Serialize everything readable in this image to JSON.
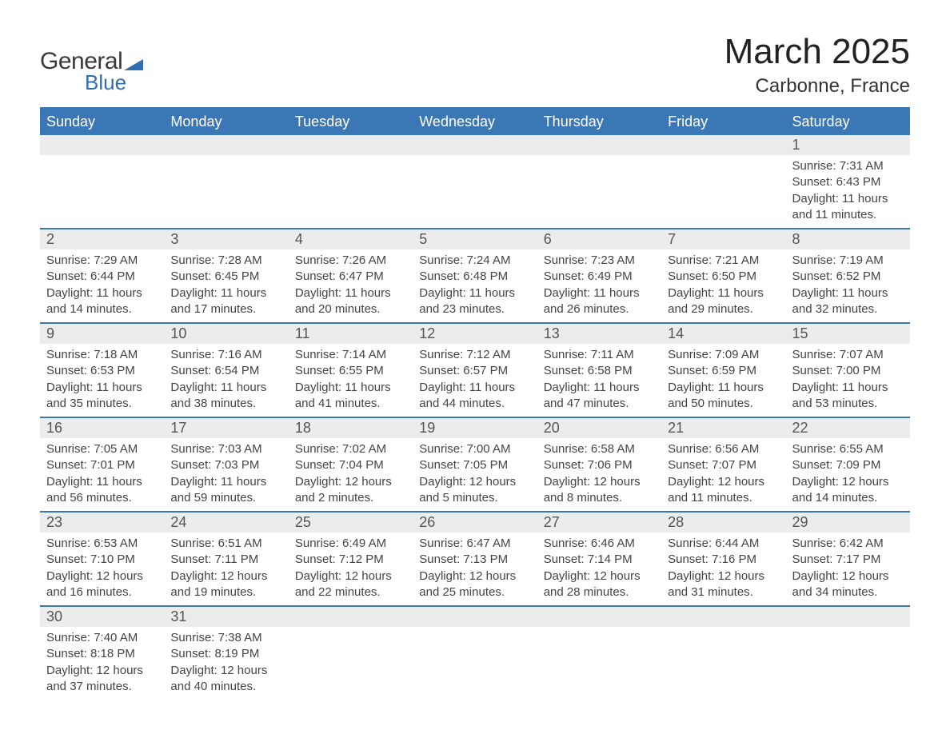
{
  "logo": {
    "text1": "General",
    "text2": "Blue",
    "shape_color": "#2f6fb0"
  },
  "title": "March 2025",
  "location": "Carbonne, France",
  "header_bg": "#3b77b5",
  "header_fg": "#ffffff",
  "daynum_bg": "#ececec",
  "row_border": "#3b77b5",
  "columns": [
    "Sunday",
    "Monday",
    "Tuesday",
    "Wednesday",
    "Thursday",
    "Friday",
    "Saturday"
  ],
  "weeks": [
    [
      null,
      null,
      null,
      null,
      null,
      null,
      {
        "n": "1",
        "sr": "Sunrise: 7:31 AM",
        "ss": "Sunset: 6:43 PM",
        "d1": "Daylight: 11 hours",
        "d2": "and 11 minutes."
      }
    ],
    [
      {
        "n": "2",
        "sr": "Sunrise: 7:29 AM",
        "ss": "Sunset: 6:44 PM",
        "d1": "Daylight: 11 hours",
        "d2": "and 14 minutes."
      },
      {
        "n": "3",
        "sr": "Sunrise: 7:28 AM",
        "ss": "Sunset: 6:45 PM",
        "d1": "Daylight: 11 hours",
        "d2": "and 17 minutes."
      },
      {
        "n": "4",
        "sr": "Sunrise: 7:26 AM",
        "ss": "Sunset: 6:47 PM",
        "d1": "Daylight: 11 hours",
        "d2": "and 20 minutes."
      },
      {
        "n": "5",
        "sr": "Sunrise: 7:24 AM",
        "ss": "Sunset: 6:48 PM",
        "d1": "Daylight: 11 hours",
        "d2": "and 23 minutes."
      },
      {
        "n": "6",
        "sr": "Sunrise: 7:23 AM",
        "ss": "Sunset: 6:49 PM",
        "d1": "Daylight: 11 hours",
        "d2": "and 26 minutes."
      },
      {
        "n": "7",
        "sr": "Sunrise: 7:21 AM",
        "ss": "Sunset: 6:50 PM",
        "d1": "Daylight: 11 hours",
        "d2": "and 29 minutes."
      },
      {
        "n": "8",
        "sr": "Sunrise: 7:19 AM",
        "ss": "Sunset: 6:52 PM",
        "d1": "Daylight: 11 hours",
        "d2": "and 32 minutes."
      }
    ],
    [
      {
        "n": "9",
        "sr": "Sunrise: 7:18 AM",
        "ss": "Sunset: 6:53 PM",
        "d1": "Daylight: 11 hours",
        "d2": "and 35 minutes."
      },
      {
        "n": "10",
        "sr": "Sunrise: 7:16 AM",
        "ss": "Sunset: 6:54 PM",
        "d1": "Daylight: 11 hours",
        "d2": "and 38 minutes."
      },
      {
        "n": "11",
        "sr": "Sunrise: 7:14 AM",
        "ss": "Sunset: 6:55 PM",
        "d1": "Daylight: 11 hours",
        "d2": "and 41 minutes."
      },
      {
        "n": "12",
        "sr": "Sunrise: 7:12 AM",
        "ss": "Sunset: 6:57 PM",
        "d1": "Daylight: 11 hours",
        "d2": "and 44 minutes."
      },
      {
        "n": "13",
        "sr": "Sunrise: 7:11 AM",
        "ss": "Sunset: 6:58 PM",
        "d1": "Daylight: 11 hours",
        "d2": "and 47 minutes."
      },
      {
        "n": "14",
        "sr": "Sunrise: 7:09 AM",
        "ss": "Sunset: 6:59 PM",
        "d1": "Daylight: 11 hours",
        "d2": "and 50 minutes."
      },
      {
        "n": "15",
        "sr": "Sunrise: 7:07 AM",
        "ss": "Sunset: 7:00 PM",
        "d1": "Daylight: 11 hours",
        "d2": "and 53 minutes."
      }
    ],
    [
      {
        "n": "16",
        "sr": "Sunrise: 7:05 AM",
        "ss": "Sunset: 7:01 PM",
        "d1": "Daylight: 11 hours",
        "d2": "and 56 minutes."
      },
      {
        "n": "17",
        "sr": "Sunrise: 7:03 AM",
        "ss": "Sunset: 7:03 PM",
        "d1": "Daylight: 11 hours",
        "d2": "and 59 minutes."
      },
      {
        "n": "18",
        "sr": "Sunrise: 7:02 AM",
        "ss": "Sunset: 7:04 PM",
        "d1": "Daylight: 12 hours",
        "d2": "and 2 minutes."
      },
      {
        "n": "19",
        "sr": "Sunrise: 7:00 AM",
        "ss": "Sunset: 7:05 PM",
        "d1": "Daylight: 12 hours",
        "d2": "and 5 minutes."
      },
      {
        "n": "20",
        "sr": "Sunrise: 6:58 AM",
        "ss": "Sunset: 7:06 PM",
        "d1": "Daylight: 12 hours",
        "d2": "and 8 minutes."
      },
      {
        "n": "21",
        "sr": "Sunrise: 6:56 AM",
        "ss": "Sunset: 7:07 PM",
        "d1": "Daylight: 12 hours",
        "d2": "and 11 minutes."
      },
      {
        "n": "22",
        "sr": "Sunrise: 6:55 AM",
        "ss": "Sunset: 7:09 PM",
        "d1": "Daylight: 12 hours",
        "d2": "and 14 minutes."
      }
    ],
    [
      {
        "n": "23",
        "sr": "Sunrise: 6:53 AM",
        "ss": "Sunset: 7:10 PM",
        "d1": "Daylight: 12 hours",
        "d2": "and 16 minutes."
      },
      {
        "n": "24",
        "sr": "Sunrise: 6:51 AM",
        "ss": "Sunset: 7:11 PM",
        "d1": "Daylight: 12 hours",
        "d2": "and 19 minutes."
      },
      {
        "n": "25",
        "sr": "Sunrise: 6:49 AM",
        "ss": "Sunset: 7:12 PM",
        "d1": "Daylight: 12 hours",
        "d2": "and 22 minutes."
      },
      {
        "n": "26",
        "sr": "Sunrise: 6:47 AM",
        "ss": "Sunset: 7:13 PM",
        "d1": "Daylight: 12 hours",
        "d2": "and 25 minutes."
      },
      {
        "n": "27",
        "sr": "Sunrise: 6:46 AM",
        "ss": "Sunset: 7:14 PM",
        "d1": "Daylight: 12 hours",
        "d2": "and 28 minutes."
      },
      {
        "n": "28",
        "sr": "Sunrise: 6:44 AM",
        "ss": "Sunset: 7:16 PM",
        "d1": "Daylight: 12 hours",
        "d2": "and 31 minutes."
      },
      {
        "n": "29",
        "sr": "Sunrise: 6:42 AM",
        "ss": "Sunset: 7:17 PM",
        "d1": "Daylight: 12 hours",
        "d2": "and 34 minutes."
      }
    ],
    [
      {
        "n": "30",
        "sr": "Sunrise: 7:40 AM",
        "ss": "Sunset: 8:18 PM",
        "d1": "Daylight: 12 hours",
        "d2": "and 37 minutes."
      },
      {
        "n": "31",
        "sr": "Sunrise: 7:38 AM",
        "ss": "Sunset: 8:19 PM",
        "d1": "Daylight: 12 hours",
        "d2": "and 40 minutes."
      },
      null,
      null,
      null,
      null,
      null
    ]
  ]
}
